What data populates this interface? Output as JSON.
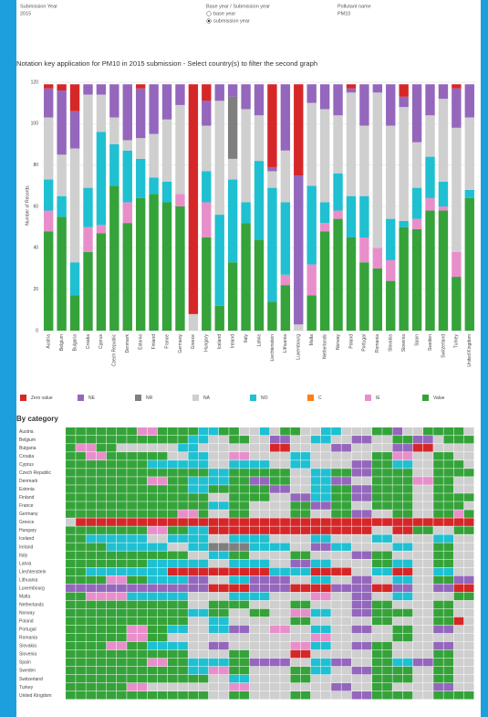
{
  "header": {
    "submission_year_label": "Submission Year",
    "submission_year": "2015",
    "base_label": "Base year / Submission year",
    "options": [
      "base year",
      "submission year"
    ],
    "selected": 1,
    "pollutant_label": "Pollutant name",
    "pollutant": "PM10"
  },
  "chart_data": [
    {
      "type": "stacked_bar",
      "title": "Notation key application for PM10 in 2015 submission - Select country(s) to filter the second graph",
      "y_label": "Number of Records",
      "categories": [
        "Austria",
        "Belgium",
        "Bulgaria",
        "Croatia",
        "Cyprus",
        "Czech Republic",
        "Denmark",
        "Estonia",
        "Finland",
        "France",
        "Germany",
        "Greece",
        "Hungary",
        "Iceland",
        "Ireland",
        "Italy",
        "Latvia",
        "Liechtenstein",
        "Lithuania",
        "Luxembourg",
        "Malta",
        "Netherlands",
        "Norway",
        "Poland",
        "Portugal",
        "Romania",
        "Slovakia",
        "Slovenia",
        "Spain",
        "Sweden",
        "Switzerland",
        "Turkey",
        "United Kingdom"
      ],
      "series": [
        {
          "name": "Zero value",
          "color": "#d62728",
          "values": [
            2,
            3,
            13,
            0,
            0,
            0,
            0,
            2,
            0,
            0,
            0,
            111,
            8,
            0,
            0,
            0,
            0,
            40,
            0,
            44,
            0,
            0,
            0,
            2,
            0,
            0,
            0,
            6,
            0,
            0,
            0,
            2,
            0
          ]
        },
        {
          "name": "NE",
          "color": "#9467bd",
          "values": [
            14,
            31,
            18,
            5,
            5,
            16,
            27,
            24,
            24,
            17,
            10,
            0,
            12,
            8,
            6,
            12,
            15,
            2,
            32,
            72,
            9,
            12,
            15,
            2,
            20,
            4,
            20,
            5,
            28,
            15,
            7,
            19,
            16
          ]
        },
        {
          "name": "NR",
          "color": "#7f7f7f",
          "values": [
            0,
            0,
            0,
            0,
            0,
            0,
            0,
            0,
            0,
            0,
            0,
            0,
            0,
            0,
            30,
            0,
            0,
            0,
            0,
            0,
            0,
            0,
            0,
            0,
            0,
            0,
            0,
            0,
            0,
            0,
            0,
            0,
            0
          ]
        },
        {
          "name": "NA",
          "color": "#cfcfcf",
          "values": [
            30,
            20,
            55,
            45,
            18,
            13,
            5,
            10,
            21,
            30,
            43,
            8,
            22,
            55,
            10,
            45,
            22,
            8,
            25,
            3,
            40,
            45,
            28,
            50,
            34,
            75,
            45,
            55,
            22,
            20,
            40,
            60,
            35
          ]
        },
        {
          "name": "NO",
          "color": "#1fc0d2",
          "values": [
            15,
            10,
            16,
            19,
            45,
            20,
            25,
            19,
            8,
            10,
            0,
            0,
            15,
            44,
            40,
            10,
            38,
            55,
            35,
            0,
            38,
            10,
            18,
            20,
            20,
            0,
            20,
            3,
            15,
            20,
            12,
            0,
            4
          ]
        },
        {
          "name": "C",
          "color": "#ff7f0e",
          "values": [
            0,
            0,
            0,
            0,
            0,
            0,
            0,
            0,
            0,
            0,
            0,
            0,
            0,
            0,
            0,
            0,
            0,
            0,
            0,
            0,
            0,
            0,
            0,
            0,
            0,
            0,
            0,
            0,
            0,
            0,
            0,
            0,
            0
          ]
        },
        {
          "name": "IE",
          "color": "#e88fcb",
          "values": [
            10,
            0,
            0,
            12,
            4,
            0,
            10,
            0,
            0,
            0,
            6,
            0,
            17,
            0,
            0,
            0,
            0,
            0,
            5,
            0,
            15,
            4,
            4,
            0,
            12,
            10,
            10,
            0,
            5,
            6,
            2,
            12,
            0
          ]
        },
        {
          "name": "Value",
          "color": "#35a33a",
          "values": [
            48,
            55,
            17,
            38,
            47,
            70,
            52,
            64,
            66,
            62,
            60,
            0,
            45,
            12,
            33,
            52,
            44,
            14,
            22,
            0,
            17,
            48,
            54,
            45,
            33,
            30,
            24,
            50,
            49,
            58,
            58,
            26,
            64
          ]
        }
      ],
      "ylim": [
        0,
        120
      ],
      "yticks": [
        0,
        20,
        40,
        60,
        80,
        100,
        120
      ]
    },
    {
      "type": "heatmap",
      "title": "By category",
      "colors": {
        "Z": "#d62728",
        "E": "#9467bd",
        "R": "#7f7f7f",
        "A": "#cfcfcf",
        "O": "#1fc0d2",
        "C": "#ff7f0e",
        "I": "#e88fcb",
        "V": "#35a33a"
      },
      "rows": [
        "VVVVVVVIIVVVVOOVVAAOAVVAAOOAAAVVEAAVVVVA",
        "VVVVVVVVVVVVOOAAVVAAEEAAOOAAEEAAVVEEAVVV",
        "VIIVVAAAAAAOOAAAAAAAZZAAAAEEAAAAEEZZAAAA",
        "VVIIVVVVVVAAOOAAIIAAAAOOAAAAAAVVIIAAVVAA",
        "VVVVVVVVOOOOOOAAOOOOAAOOAAAAEEVVOOAAVVVA",
        "VVVVVVVVVVVVVVOOVVVVVVAAOOVVEEVVVVAAVVVV",
        "VVVVVVVVIIVVOOOOVVEEVVAAOOEEAAVVVVIIVVAA",
        "VVVVVVVVVVVVOOVVVVVVEEAAOOVVEEVVVVAAVVAA",
        "VVVVVVVVVVVVVVAAVVVVAAEEOOVVEEVVVVAAVVVV",
        "VVVVVVVVVVVVVVOOVVAAAAVVEEVVAAVVVVAAVVVA",
        "VVVVVVVVVVVIIVAAVVAAAAVVAAVVEEAAVVAAVVIV",
        "AZZZZZZZZZZZZZZZZZZZZZZZZZZZZZZZZZZZZZZZ",
        "VVVVVVVVIIVVOOZZZZZZZZZZZZZZZZAAZZVVAAVV",
        "VVOOOOOOAAOOOOAAOOOOAAAAOOAAAAOOAAAAOOAA",
        "VVVVOOOOOOAAOORRRROOOOAAEEOOAAAAOOAAVVAA",
        "VVVVVVVVVVVVAAOOVVAAAAVVAAAAEEVVAAAAVVAA",
        "VVVVVVVVOOOOOOAAOOOOAAEEOOAAAAVVOOAAVVAA",
        "VVOOOOOOOOZZZZZZZZZZOOOOZZZZAAOOZZAAOOAA",
        "VVVVIIVVOOOOEEAAOOEEEEAAOOAAEEAAOOAAVVEE",
        "EEEEEEEEEEEEEEZZZZEEEEZZZZEEEEZZEEAAEEZZ",
        "VVIIIIOOOOOOAAAAOOOOAAAAIIAAEEAAOOAAAAVV",
        "VVVVVVVVVVVVAAVVVVAAAAVVAAAAEEVVAAAAVVAA",
        "VVVVVVVVVVVVOOVVAAVVAAIIOOAAEEVVVVAAVVAA",
        "VVVVVVVVVVVVAAOOAAAAAAVVAAAAAAVVAAAAVVZA",
        "VVVVVVIIVVOOAAOOEEAAIIAAOOAAEEAAVVAAEEAA",
        "VVVVVVIIVVAAAAAAAAAAAAAAIIAAAAAAVVAAAAAA",
        "VVVVIIVVOOOOAAEEAAAAAAIIOOAAEEVVAAAAEEAA",
        "VVVVVVVVVVVVAAAAVVAAAAZZAAAAAAVVAAAAVVAA",
        "VVVVVVVVIIVVOOOOVVEEEEAAOOEEAAVVOOEEVVAA",
        "VVVVVVVVVVVVOOIIVVAAAAVVOOAAEEVVVVAAVVAA",
        "VVVVVVVVVVVVVVAAOOAAAAVVAAAAAAVVVVAAVVAA",
        "VVVVVVIIAAAAAAAAIIAAAAAAAAEEAAVVAAAAEEAA",
        "VVVVVVVVVVVVVVAAVVAAAAVVAAAAEEVVVVAAVVVV"
      ]
    }
  ]
}
